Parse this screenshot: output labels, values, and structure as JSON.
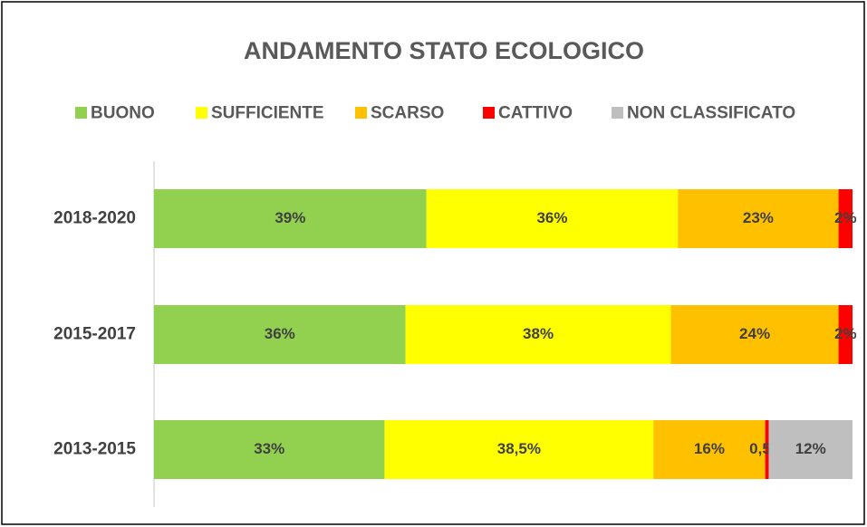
{
  "chart_data": {
    "type": "stacked-bar-horizontal",
    "title": "ANDAMENTO STATO ECOLOGICO",
    "categories": [
      "2018-2020",
      "2015-2017",
      "2013-2015"
    ],
    "xlim": [
      0,
      100
    ],
    "legend": "top",
    "series": [
      {
        "name": "BUONO",
        "color": "#92d050",
        "values": [
          39,
          36,
          33
        ],
        "value_labels": [
          "39%",
          "36%",
          "33%"
        ]
      },
      {
        "name": "SUFFICIENTE",
        "color": "#ffff00",
        "values": [
          36,
          38,
          38.5
        ],
        "value_labels": [
          "36%",
          "38%",
          "38,5%"
        ]
      },
      {
        "name": "SCARSO",
        "color": "#ffc000",
        "values": [
          23,
          24,
          16
        ],
        "value_labels": [
          "23%",
          "24%",
          "16%"
        ]
      },
      {
        "name": "CATTIVO",
        "color": "#ff0000",
        "values": [
          2,
          2,
          0.5
        ],
        "value_labels": [
          "2%",
          "2%",
          "0,5%"
        ]
      },
      {
        "name": "NON CLASSIFICATO",
        "color": "#bfbfbf",
        "values": [
          null,
          null,
          12
        ],
        "value_labels": [
          null,
          null,
          "12%"
        ]
      }
    ]
  }
}
